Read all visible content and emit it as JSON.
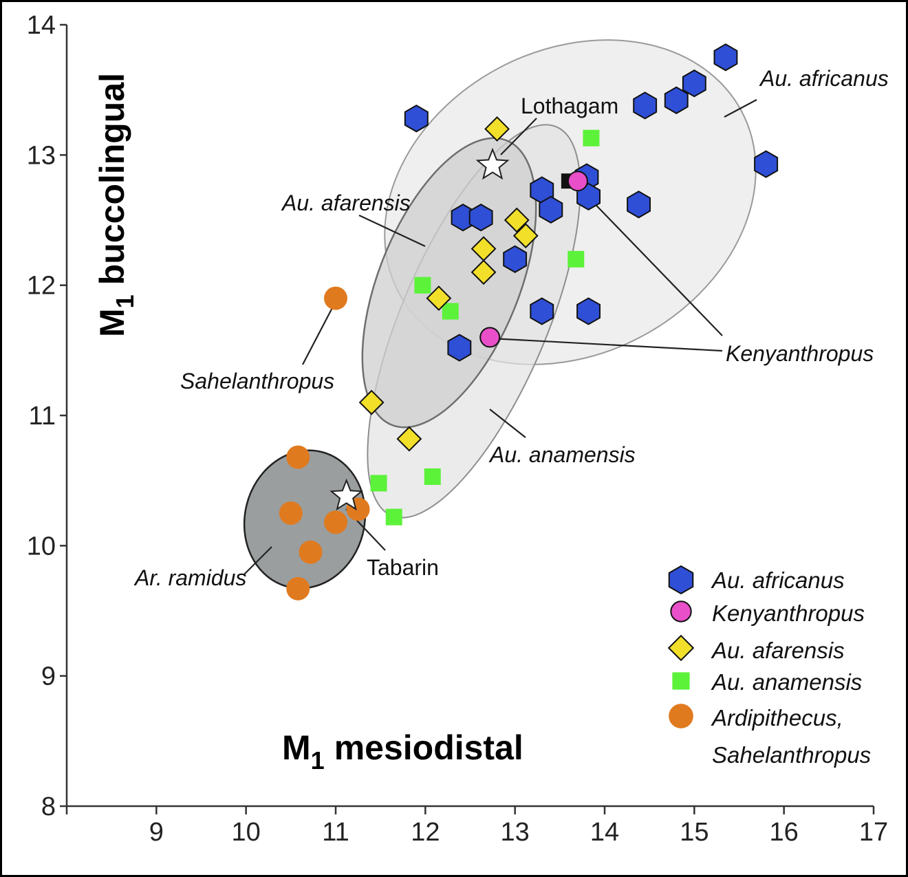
{
  "chart_data": {
    "type": "scatter",
    "x_axis": {
      "label_main": "M",
      "label_sub": "1",
      "label_rest": "mesiodistal",
      "ticks": [
        "9",
        "10",
        "11",
        "12",
        "13",
        "14",
        "15",
        "16",
        "17"
      ],
      "range": [
        8,
        17
      ]
    },
    "y_axis": {
      "label_main": "M",
      "label_sub": "1",
      "label_rest": "buccolingual",
      "ticks": [
        "8",
        "9",
        "10",
        "11",
        "12",
        "13",
        "14"
      ],
      "range": [
        8,
        14
      ]
    },
    "grid": false,
    "legend_position": "bottom-right",
    "series": [
      {
        "name": "Au. africanus",
        "marker": "hexagon",
        "color": "#2f4fd6",
        "points": [
          [
            11.9,
            13.28
          ],
          [
            14.45,
            13.38
          ],
          [
            14.8,
            13.42
          ],
          [
            15.0,
            13.55
          ],
          [
            15.35,
            13.75
          ],
          [
            15.8,
            12.93
          ],
          [
            14.38,
            12.62
          ],
          [
            13.3,
            12.73
          ],
          [
            13.4,
            12.58
          ],
          [
            13.8,
            12.83
          ],
          [
            13.82,
            12.68
          ],
          [
            12.42,
            12.52
          ],
          [
            12.62,
            12.52
          ],
          [
            13.0,
            12.2
          ],
          [
            13.3,
            11.8
          ],
          [
            13.82,
            11.8
          ],
          [
            12.38,
            11.52
          ]
        ]
      },
      {
        "name": "Kenyanthropus",
        "marker": "circle",
        "color": "#e84fc8",
        "points": [
          [
            13.7,
            12.8
          ],
          [
            12.72,
            11.6
          ]
        ]
      },
      {
        "name": "Au. afarensis",
        "marker": "diamond",
        "color": "#f2df2a",
        "points": [
          [
            12.8,
            13.2
          ],
          [
            13.02,
            12.5
          ],
          [
            13.12,
            12.38
          ],
          [
            12.65,
            12.28
          ],
          [
            12.65,
            12.1
          ],
          [
            12.15,
            11.9
          ],
          [
            11.4,
            11.1
          ],
          [
            11.82,
            10.82
          ]
        ]
      },
      {
        "name": "Au. anamensis",
        "marker": "square",
        "color": "#5cf23a",
        "points": [
          [
            13.85,
            13.13
          ],
          [
            13.68,
            12.2
          ],
          [
            11.97,
            12.0
          ],
          [
            12.28,
            11.8
          ],
          [
            12.08,
            10.53
          ],
          [
            11.48,
            10.48
          ],
          [
            11.65,
            10.22
          ]
        ]
      },
      {
        "name": "Ardipithecus, Sahelanthropus",
        "marker": "circle",
        "color": "#e07a1f",
        "points": [
          [
            11.0,
            11.9
          ],
          [
            10.58,
            10.68
          ],
          [
            10.5,
            10.25
          ],
          [
            11.0,
            10.18
          ],
          [
            11.25,
            10.28
          ],
          [
            10.72,
            9.95
          ],
          [
            10.58,
            9.67
          ]
        ]
      }
    ],
    "extra_points": [
      {
        "label": "Lothagam",
        "marker": "star",
        "x": 12.75,
        "y": 12.92
      },
      {
        "label": "Tabarin",
        "marker": "star",
        "x": 11.12,
        "y": 10.38
      },
      {
        "label": "",
        "marker": "black-square",
        "x": 13.6,
        "y": 12.8
      }
    ],
    "annotations": [
      {
        "text": "Au. africanus",
        "italic": true
      },
      {
        "text": "Lothagam",
        "italic": false
      },
      {
        "text": "Au. afarensis",
        "italic": true
      },
      {
        "text": "Kenyanthropus",
        "italic": true
      },
      {
        "text": "Sahelanthropus",
        "italic": true
      },
      {
        "text": "Au. anamensis",
        "italic": true
      },
      {
        "text": "Tabarin",
        "italic": false
      },
      {
        "text": "Ar. ramidus",
        "italic": true
      }
    ],
    "legend": [
      {
        "label": "Au. africanus",
        "marker": "hexagon",
        "color": "#2f4fd6"
      },
      {
        "label": "Kenyanthropus",
        "marker": "circle",
        "color": "#e84fc8"
      },
      {
        "label": "Au. afarensis",
        "marker": "diamond",
        "color": "#f2df2a"
      },
      {
        "label": "Au. anamensis",
        "marker": "square",
        "color": "#5cf23a"
      },
      {
        "label_line1": "Ardipithecus,",
        "label_line2": "Sahelanthropus",
        "marker": "circle",
        "color": "#e07a1f"
      }
    ]
  }
}
